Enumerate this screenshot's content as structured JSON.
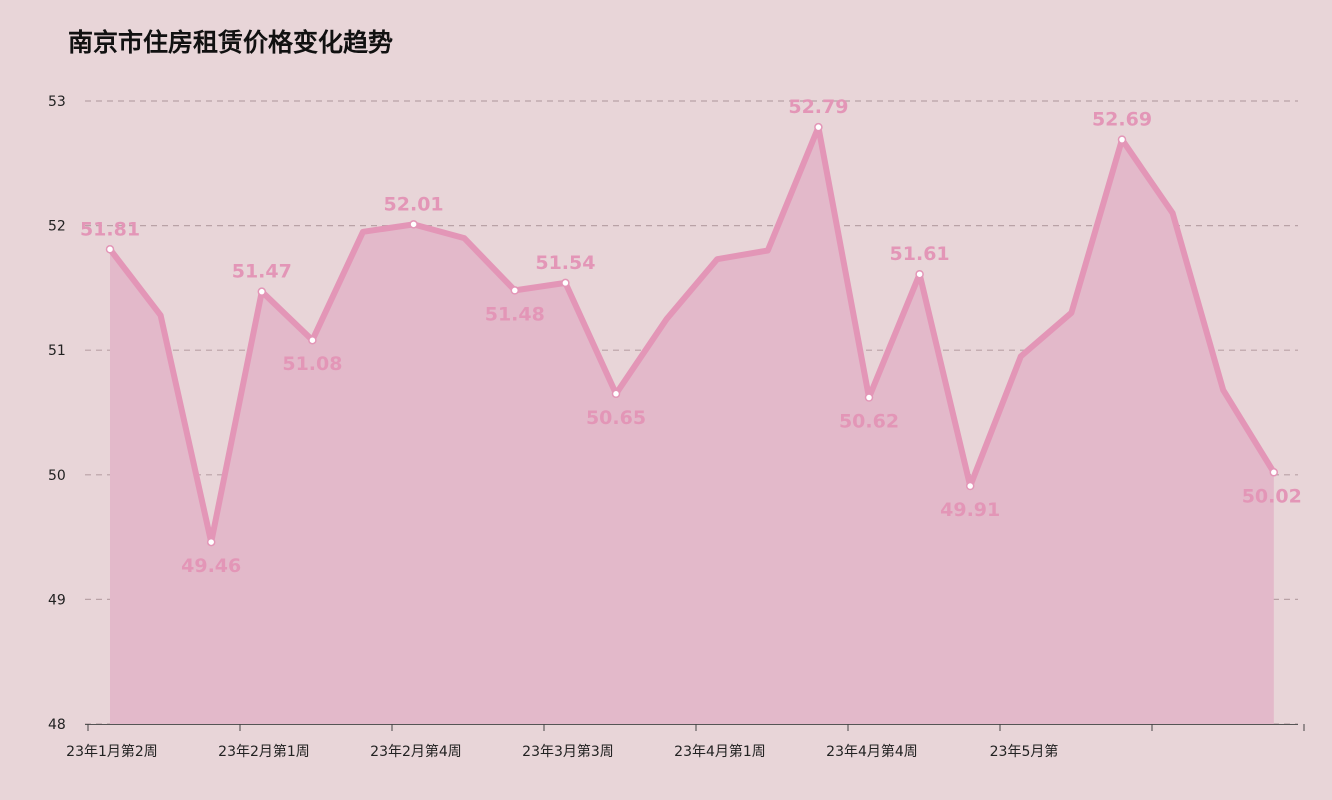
{
  "chart_data": {
    "type": "area",
    "title": "南京市住房租赁价格变化趋势",
    "ylim": [
      48,
      53
    ],
    "yticks": [
      "48",
      "49",
      "50",
      "51",
      "52",
      "53"
    ],
    "x_tick_labels": [
      "23年1月第2周",
      "23年2月第1周",
      "23年2月第4周",
      "23年3月第3周",
      "23年4月第1周",
      "23年4月第4周",
      "23年5月第"
    ],
    "values": [
      51.81,
      51.28,
      49.46,
      51.47,
      51.08,
      51.95,
      52.01,
      51.9,
      51.48,
      51.54,
      50.65,
      51.25,
      51.73,
      51.8,
      52.79,
      50.62,
      51.61,
      49.91,
      50.95,
      51.3,
      52.69,
      52.1,
      50.68,
      50.02
    ],
    "data_labels": [
      "51.81",
      "",
      "49.46",
      "51.47",
      "51.08",
      "",
      "52.01",
      "",
      "51.48",
      "51.54",
      "50.65",
      "",
      "",
      "",
      "52.79",
      "50.62",
      "51.61",
      "49.91",
      "",
      "",
      "52.69",
      "",
      "",
      "50.02"
    ],
    "grid": true,
    "line_color": "#e396b7",
    "fill_color": "#e3b9ca",
    "background_color": "#e8d5d8"
  }
}
